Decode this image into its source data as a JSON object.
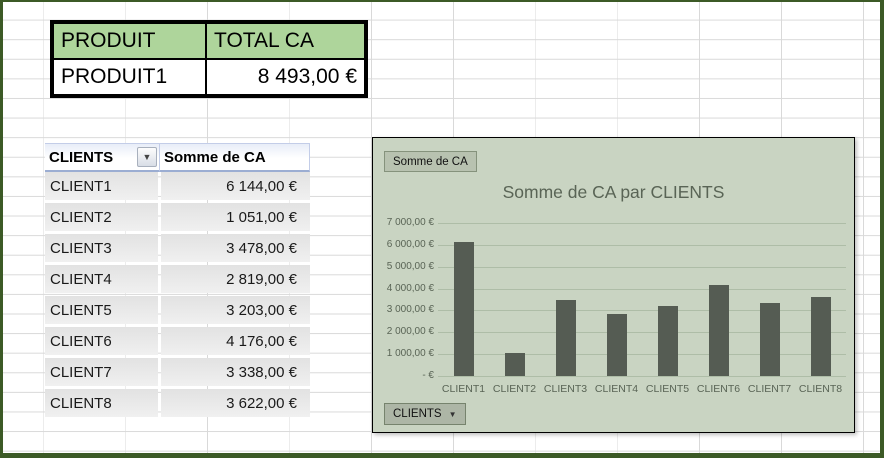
{
  "produit_table": {
    "headers": [
      "PRODUIT",
      "TOTAL CA"
    ],
    "row": {
      "produit": "PRODUIT1",
      "total": "8 493,00 €"
    }
  },
  "pivot": {
    "col1_header": "CLIENTS",
    "col2_header": "Somme de CA",
    "filter_icon": "▼",
    "rows": [
      {
        "client": "CLIENT1",
        "value": "6 144,00 €"
      },
      {
        "client": "CLIENT2",
        "value": "1 051,00 €"
      },
      {
        "client": "CLIENT3",
        "value": "3 478,00 €"
      },
      {
        "client": "CLIENT4",
        "value": "2 819,00 €"
      },
      {
        "client": "CLIENT5",
        "value": "3 203,00 €"
      },
      {
        "client": "CLIENT6",
        "value": "4 176,00 €"
      },
      {
        "client": "CLIENT7",
        "value": "3 338,00 €"
      },
      {
        "client": "CLIENT8",
        "value": "3 622,00 €"
      }
    ]
  },
  "chart": {
    "field_button_label": "Somme de CA",
    "axis_button_label": "CLIENTS",
    "axis_button_arrow": "▼",
    "title": "Somme de CA par CLIENTS",
    "bg_color": "#c9d4c2",
    "bar_color": "#555c53",
    "gridline_color": "#aebda7",
    "text_color": "#596455"
  },
  "chart_data": {
    "type": "bar",
    "title": "Somme de CA par CLIENTS",
    "categories": [
      "CLIENT1",
      "CLIENT2",
      "CLIENT3",
      "CLIENT4",
      "CLIENT5",
      "CLIENT6",
      "CLIENT7",
      "CLIENT8"
    ],
    "values": [
      6144,
      1051,
      3478,
      2819,
      3203,
      4176,
      3338,
      3622
    ],
    "xlabel": "",
    "ylabel": "",
    "ylim": [
      0,
      7000
    ],
    "ytick_step": 1000,
    "ytick_labels": [
      "-   €",
      "1 000,00 €",
      "2 000,00 €",
      "3 000,00 €",
      "4 000,00 €",
      "5 000,00 €",
      "6 000,00 €",
      "7 000,00 €"
    ],
    "grid": true,
    "legend": "none"
  }
}
